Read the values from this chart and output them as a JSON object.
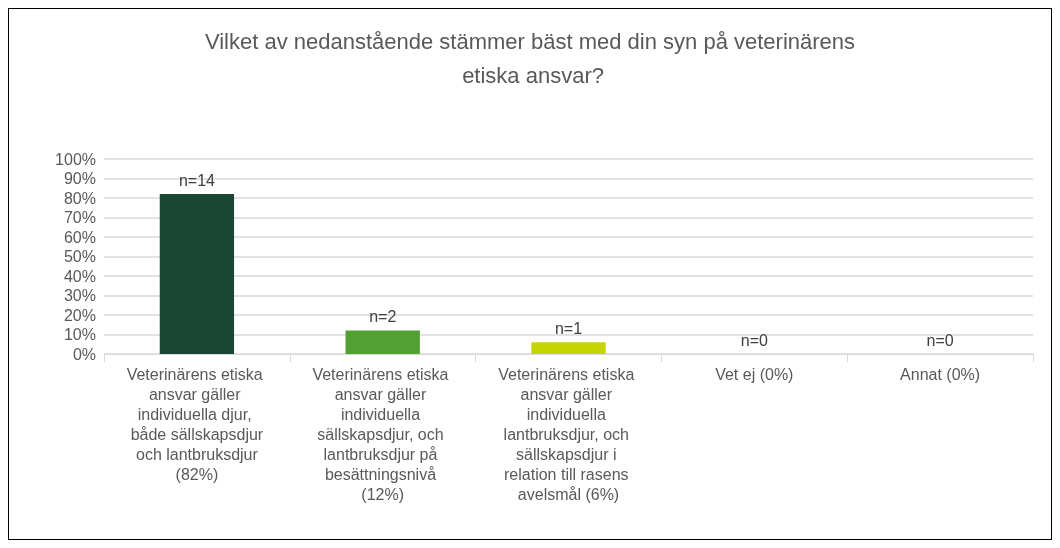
{
  "chart_data": {
    "type": "bar",
    "title": "Vilket av nedanstående stämmer bäst med din syn på veterinärens etiska ansvar?",
    "categories": [
      "Veterinärens etiska ansvar gäller individuella djur, både sällskapsdjur och lantbruksdjur (82%)",
      "Veterinärens etiska ansvar gäller individuella sällskapsdjur, och lantbruksdjur på besättningsnivå (12%)",
      "Veterinärens etiska ansvar gäller individuella lantbruksdjur, och sällskapsdjur i relation till rasens avelsmål (6%)",
      "Vet ej (0%)",
      "Annat (0%)"
    ],
    "values": [
      82,
      12,
      6,
      0,
      0
    ],
    "colors": [
      "#1a4633",
      "#52a031",
      "#c5d500",
      "#4f9a2e",
      "#4f9a2e"
    ],
    "annotations": [
      {
        "text": "n=14",
        "x": "Veterinärens etiska ansvar gäller individuella djur, både sällskapsdjur och lantbruksdjur (82%)",
        "y": 82
      },
      {
        "text": "n=2",
        "x": "Veterinärens etiska ansvar gäller individuella sällskapsdjur, och lantbruksdjur på besättningsnivå (12%)",
        "y": 12
      },
      {
        "text": "n=1",
        "x": "Veterinärens etiska ansvar gäller individuella lantbruksdjur, och sällskapsdjur i relation till rasens avelsmål (6%)",
        "y": 6
      },
      {
        "text": "n=0",
        "x": "Vet ej (0%)",
        "y": 0
      },
      {
        "text": "n=0",
        "x": "Annat (0%)",
        "y": 0
      }
    ],
    "ylim": [
      0,
      100
    ],
    "yticks": [
      {
        "value": 0,
        "label": "0%"
      },
      {
        "value": 10,
        "label": "10%"
      },
      {
        "value": 20,
        "label": "20%"
      },
      {
        "value": 30,
        "label": "30%"
      },
      {
        "value": 40,
        "label": "40%"
      },
      {
        "value": 50,
        "label": "50%"
      },
      {
        "value": 60,
        "label": "60%"
      },
      {
        "value": 70,
        "label": "70%"
      },
      {
        "value": 80,
        "label": "80%"
      },
      {
        "value": 90,
        "label": "90%"
      },
      {
        "value": 100,
        "label": "100%"
      }
    ],
    "grid": "y"
  }
}
